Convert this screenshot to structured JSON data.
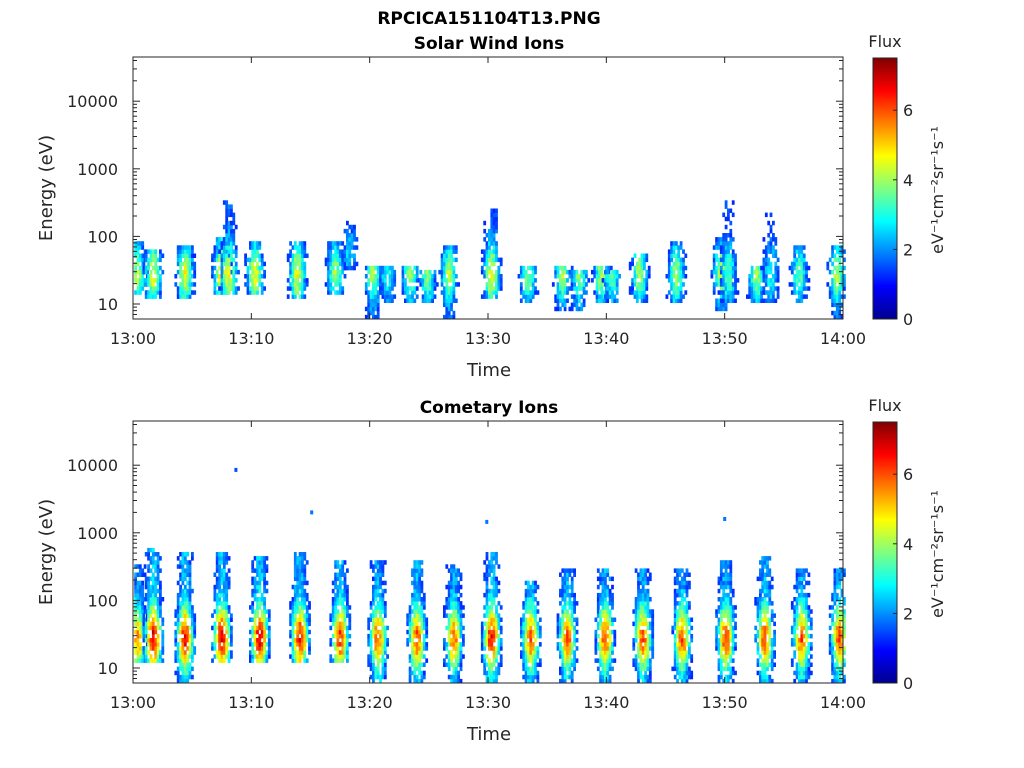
{
  "figure": {
    "title": "RPCICA151104T13.PNG"
  },
  "panels": [
    {
      "title": "Solar Wind Ions",
      "xlabel": "Time",
      "ylabel": "Energy (eV)"
    },
    {
      "title": "Cometary Ions",
      "xlabel": "Time",
      "ylabel": "Energy (eV)"
    }
  ],
  "colorbar": {
    "title": "Flux",
    "units": "eV⁻¹cm⁻²sr⁻¹s⁻¹",
    "ticks": [
      "0",
      "2",
      "4",
      "6"
    ]
  },
  "chart_data": [
    {
      "type": "heatmap",
      "title": "Solar Wind Ions",
      "xlabel": "Time",
      "ylabel": "Energy (eV)",
      "x_ticks": [
        "13:00",
        "13:10",
        "13:20",
        "13:30",
        "13:40",
        "13:50",
        "14:00"
      ],
      "y_ticks": [
        "10",
        "100",
        "1000",
        "10000"
      ],
      "yscale": "log",
      "ylim": [
        6,
        45000
      ],
      "xlim_minutes": [
        0,
        60
      ],
      "clim": [
        0,
        7.5
      ],
      "colormap": "jet",
      "bursts": [
        {
          "t": 0.3,
          "emin": 14,
          "emax": 90,
          "peak": 4.0
        },
        {
          "t": 1.6,
          "emin": 12,
          "emax": 60,
          "peak": 4.5
        },
        {
          "t": 4.3,
          "emin": 12,
          "emax": 70,
          "peak": 4.5
        },
        {
          "t": 7.4,
          "emin": 14,
          "emax": 100,
          "peak": 5.0
        },
        {
          "t": 8.0,
          "emin": 14,
          "emax": 350,
          "peak": 4.5
        },
        {
          "t": 10.2,
          "emin": 14,
          "emax": 90,
          "peak": 4.5
        },
        {
          "t": 13.8,
          "emin": 12,
          "emax": 90,
          "peak": 4.5
        },
        {
          "t": 17.0,
          "emin": 14,
          "emax": 90,
          "peak": 4.0
        },
        {
          "t": 18.2,
          "emin": 30,
          "emax": 170,
          "peak": 2.5
        },
        {
          "t": 20.2,
          "emin": 6,
          "emax": 35,
          "peak": 4.0
        },
        {
          "t": 21.4,
          "emin": 10,
          "emax": 35,
          "peak": 3.0
        },
        {
          "t": 23.3,
          "emin": 10,
          "emax": 35,
          "peak": 3.8
        },
        {
          "t": 24.8,
          "emin": 10,
          "emax": 30,
          "peak": 3.8
        },
        {
          "t": 26.6,
          "emin": 6,
          "emax": 70,
          "peak": 4.0
        },
        {
          "t": 30.2,
          "emin": 12,
          "emax": 270,
          "peak": 4.5
        },
        {
          "t": 33.3,
          "emin": 10,
          "emax": 35,
          "peak": 3.8
        },
        {
          "t": 36.2,
          "emin": 8,
          "emax": 35,
          "peak": 4.0
        },
        {
          "t": 37.6,
          "emin": 8,
          "emax": 30,
          "peak": 3.8
        },
        {
          "t": 39.5,
          "emin": 10,
          "emax": 35,
          "peak": 4.0
        },
        {
          "t": 40.4,
          "emin": 10,
          "emax": 30,
          "peak": 3.5
        },
        {
          "t": 42.7,
          "emin": 10,
          "emax": 55,
          "peak": 4.0
        },
        {
          "t": 45.8,
          "emin": 10,
          "emax": 80,
          "peak": 4.0
        },
        {
          "t": 49.6,
          "emin": 8,
          "emax": 100,
          "peak": 4.2
        },
        {
          "t": 50.2,
          "emin": 10,
          "emax": 330,
          "peak": 3.5
        },
        {
          "t": 52.6,
          "emin": 10,
          "emax": 35,
          "peak": 4.0
        },
        {
          "t": 53.8,
          "emin": 10,
          "emax": 230,
          "peak": 3.0
        },
        {
          "t": 56.2,
          "emin": 10,
          "emax": 75,
          "peak": 3.5
        },
        {
          "t": 59.4,
          "emin": 6,
          "emax": 75,
          "peak": 4.0
        }
      ]
    },
    {
      "type": "heatmap",
      "title": "Cometary Ions",
      "xlabel": "Time",
      "ylabel": "Energy (eV)",
      "x_ticks": [
        "13:00",
        "13:10",
        "13:20",
        "13:30",
        "13:40",
        "13:50",
        "14:00"
      ],
      "y_ticks": [
        "10",
        "100",
        "1000",
        "10000"
      ],
      "yscale": "log",
      "ylim": [
        6,
        45000
      ],
      "xlim_minutes": [
        0,
        60
      ],
      "clim": [
        0,
        7.5
      ],
      "colormap": "jet",
      "bursts": [
        {
          "t": 0.3,
          "emin": 12,
          "emax": 350,
          "peak": 5.5
        },
        {
          "t": 1.6,
          "emin": 12,
          "emax": 600,
          "peak": 6.8
        },
        {
          "t": 4.3,
          "emin": 6,
          "emax": 500,
          "peak": 6.5
        },
        {
          "t": 7.4,
          "emin": 12,
          "emax": 500,
          "peak": 6.8
        },
        {
          "t": 10.6,
          "emin": 12,
          "emax": 450,
          "peak": 6.8
        },
        {
          "t": 14.0,
          "emin": 12,
          "emax": 500,
          "peak": 6.5
        },
        {
          "t": 17.4,
          "emin": 12,
          "emax": 400,
          "peak": 6.3
        },
        {
          "t": 20.6,
          "emin": 6,
          "emax": 400,
          "peak": 6.0
        },
        {
          "t": 23.9,
          "emin": 6,
          "emax": 400,
          "peak": 6.0
        },
        {
          "t": 27.0,
          "emin": 6,
          "emax": 350,
          "peak": 5.8
        },
        {
          "t": 30.2,
          "emin": 6,
          "emax": 500,
          "peak": 6.5
        },
        {
          "t": 33.5,
          "emin": 6,
          "emax": 200,
          "peak": 6.0
        },
        {
          "t": 36.6,
          "emin": 6,
          "emax": 300,
          "peak": 6.0
        },
        {
          "t": 39.8,
          "emin": 6,
          "emax": 300,
          "peak": 6.0
        },
        {
          "t": 43.0,
          "emin": 6,
          "emax": 300,
          "peak": 6.0
        },
        {
          "t": 46.3,
          "emin": 6,
          "emax": 300,
          "peak": 6.0
        },
        {
          "t": 50.0,
          "emin": 6,
          "emax": 400,
          "peak": 6.2
        },
        {
          "t": 53.3,
          "emin": 6,
          "emax": 450,
          "peak": 6.0
        },
        {
          "t": 56.4,
          "emin": 6,
          "emax": 300,
          "peak": 6.0
        },
        {
          "t": 59.6,
          "emin": 6,
          "emax": 300,
          "peak": 6.0
        }
      ],
      "isolated_points": [
        {
          "t": 8.7,
          "e": 8500,
          "v": 1.5
        },
        {
          "t": 15.1,
          "e": 2000,
          "v": 1.8
        },
        {
          "t": 29.9,
          "e": 1450,
          "v": 1.8
        },
        {
          "t": 50.0,
          "e": 1600,
          "v": 1.8
        }
      ]
    }
  ]
}
